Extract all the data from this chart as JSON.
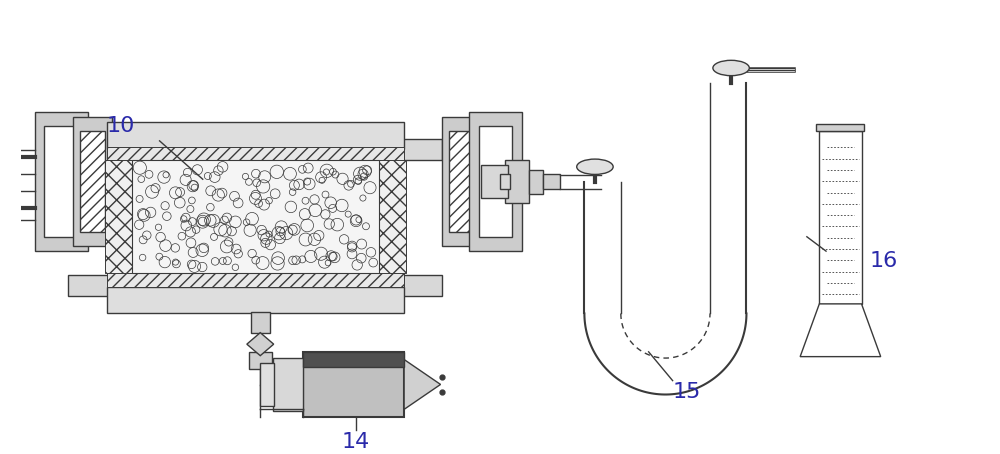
{
  "bg_color": "#ffffff",
  "line_color": "#3a3a3a",
  "label_color": "#2a2aaa",
  "label_fontsize": 16,
  "lw_main": 1.0,
  "lw_thick": 1.5,
  "fig_w": 10.0,
  "fig_h": 4.54
}
